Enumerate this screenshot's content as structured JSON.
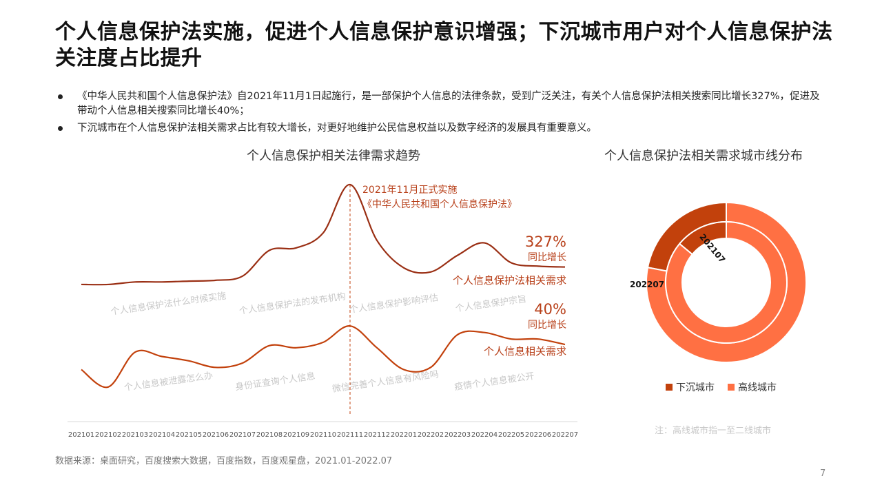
{
  "page": {
    "title": "个人信息保护法实施，促进个人信息保护意识增强；下沉城市用户对个人信息保护法关注度占比提升",
    "bullets": [
      "《中华人民共和国个人信息保护法》自2021年11月1日起施行，是一部保护个人信息的法律条款，受到广泛关注，有关个人信息保护法相关搜索同比增长327%，促进及带动个人信息相关搜索同比增长40%；",
      "下沉城市在个人信息保护法相关需求占比有较大增长，对更好地维护公民信息权益以及数字经济的发展具有重要意义。"
    ],
    "source": "数据来源：桌面研究，百度搜索大数据，百度指数，百度观星盘，2021.01-2022.07",
    "page_number": "7",
    "note": "注：高线城市指一至二线城市"
  },
  "colors": {
    "dark": "#c2410c",
    "bright": "#ff7043",
    "line": "#9a2f14",
    "annotation_text": "#b8401a",
    "watermark": "#c8c8c8"
  },
  "chart_data": [
    {
      "type": "line",
      "title": "个人信息保护相关法律需求趋势",
      "categories": [
        "202101",
        "202102",
        "202103",
        "202104",
        "202105",
        "202106",
        "202107",
        "202108",
        "202109",
        "202110",
        "202111",
        "202112",
        "202201",
        "202202",
        "202203",
        "202204",
        "202205",
        "202206",
        "202207"
      ],
      "series": [
        {
          "name": "个人信息保护法相关需求",
          "values": [
            10,
            10,
            13,
            13,
            14,
            15,
            20,
            51,
            54,
            72,
            130,
            63,
            30,
            25,
            45,
            60,
            36,
            32,
            31
          ],
          "change_value": "327%",
          "change_label": "同比增长"
        },
        {
          "name": "个人信息相关需求",
          "values": [
            38,
            22,
            54,
            50,
            46,
            40,
            44,
            60,
            58,
            63,
            78,
            58,
            38,
            40,
            70,
            72,
            66,
            66,
            61
          ],
          "change_value": "40%",
          "change_label": "同比增长"
        }
      ],
      "event": {
        "category": "202111",
        "line1": "2021年11月正式实施",
        "line2": "《中华人民共和国个人信息保护法》"
      },
      "watermarks_upper": [
        "个人信息保护法什么时候实施",
        "个人信息保护法的发布机构",
        "个人信息保护影响评估",
        "个人信息保护宗旨"
      ],
      "watermarks_lower": [
        "个人信息被泄露怎么办",
        "身份证查询个人信息",
        "微信完善个人信息有风险吗",
        "疫情个人信息被公开"
      ]
    },
    {
      "type": "pie",
      "title": "个人信息保护法相关需求城市线分布",
      "rings": [
        {
          "label": "202207",
          "ring": "outer",
          "values": {
            "下沉城市": 22,
            "高线城市": 78
          }
        },
        {
          "label": "202107",
          "ring": "inner",
          "values": {
            "下沉城市": 14,
            "高线城市": 86
          }
        }
      ],
      "legend": [
        "下沉城市",
        "高线城市"
      ]
    }
  ]
}
